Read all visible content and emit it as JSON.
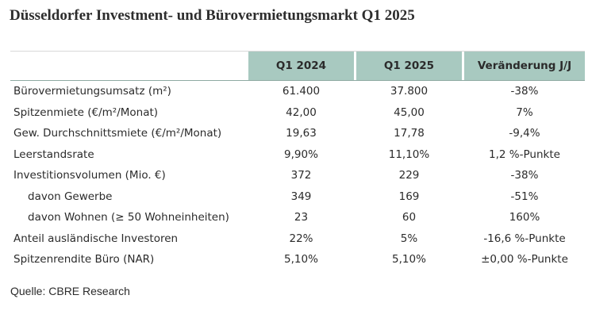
{
  "title": "Düsseldorfer Investment- und Bürovermietungsmarkt Q1 2025",
  "columns": [
    "Q1 2024",
    "Q1 2025",
    "Veränderung J/J"
  ],
  "rows": [
    {
      "label": "Bürovermietungsumsatz (m²)",
      "q1_2024": "61.400",
      "q1_2025": "37.800",
      "change": "-38%",
      "indent": false
    },
    {
      "label": "Spitzenmiete (€/m²/Monat)",
      "q1_2024": "42,00",
      "q1_2025": "45,00",
      "change": "7%",
      "indent": false
    },
    {
      "label": "Gew. Durchschnittsmiete (€/m²/Monat)",
      "q1_2024": "19,63",
      "q1_2025": "17,78",
      "change": "-9,4%",
      "indent": false
    },
    {
      "label": "Leerstandsrate",
      "q1_2024": "9,90%",
      "q1_2025": "11,10%",
      "change": "1,2 %-Punkte",
      "indent": false
    },
    {
      "label": "Investitionsvolumen (Mio. €)",
      "q1_2024": "372",
      "q1_2025": "229",
      "change": "-38%",
      "indent": false
    },
    {
      "label": "davon Gewerbe",
      "q1_2024": "349",
      "q1_2025": "169",
      "change": "-51%",
      "indent": true
    },
    {
      "label": "davon Wohnen (≥ 50 Wohneinheiten)",
      "q1_2024": "23",
      "q1_2025": "60",
      "change": "160%",
      "indent": true
    },
    {
      "label": "Anteil ausländische Investoren",
      "q1_2024": "22%",
      "q1_2025": "5%",
      "change": "-16,6 %-Punkte",
      "indent": false
    },
    {
      "label": "Spitzenrendite Büro (NAR)",
      "q1_2024": "5,10%",
      "q1_2025": "5,10%",
      "change": "±0,00 %-Punkte",
      "indent": false
    }
  ],
  "source": "Quelle: CBRE Research",
  "colors": {
    "header_bg": "#a8c9c0",
    "text": "#2b2b2b"
  }
}
